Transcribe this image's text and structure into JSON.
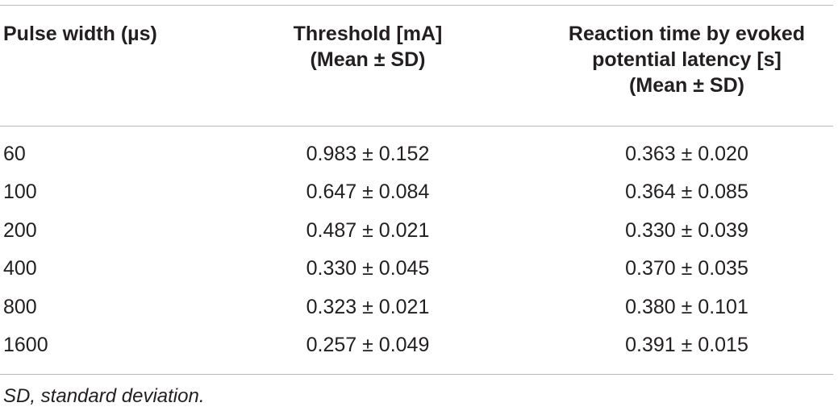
{
  "table": {
    "headers": [
      [
        "Pulse width (µs)"
      ],
      [
        "Threshold [mA]",
        "(Mean ± SD)"
      ],
      [
        "Reaction time by evoked",
        "potential latency [s]",
        "(Mean ± SD)"
      ]
    ],
    "rows": [
      [
        "60",
        "0.983 ± 0.152",
        "0.363 ± 0.020"
      ],
      [
        "100",
        "0.647 ± 0.084",
        "0.364 ± 0.085"
      ],
      [
        "200",
        "0.487 ± 0.021",
        "0.330 ± 0.039"
      ],
      [
        "400",
        "0.330 ± 0.045",
        "0.370 ± 0.035"
      ],
      [
        "800",
        "0.323 ± 0.021",
        "0.380 ± 0.101"
      ],
      [
        "1600",
        "0.257 ± 0.049",
        "0.391 ± 0.015"
      ]
    ],
    "footnote": "SD, standard deviation."
  }
}
